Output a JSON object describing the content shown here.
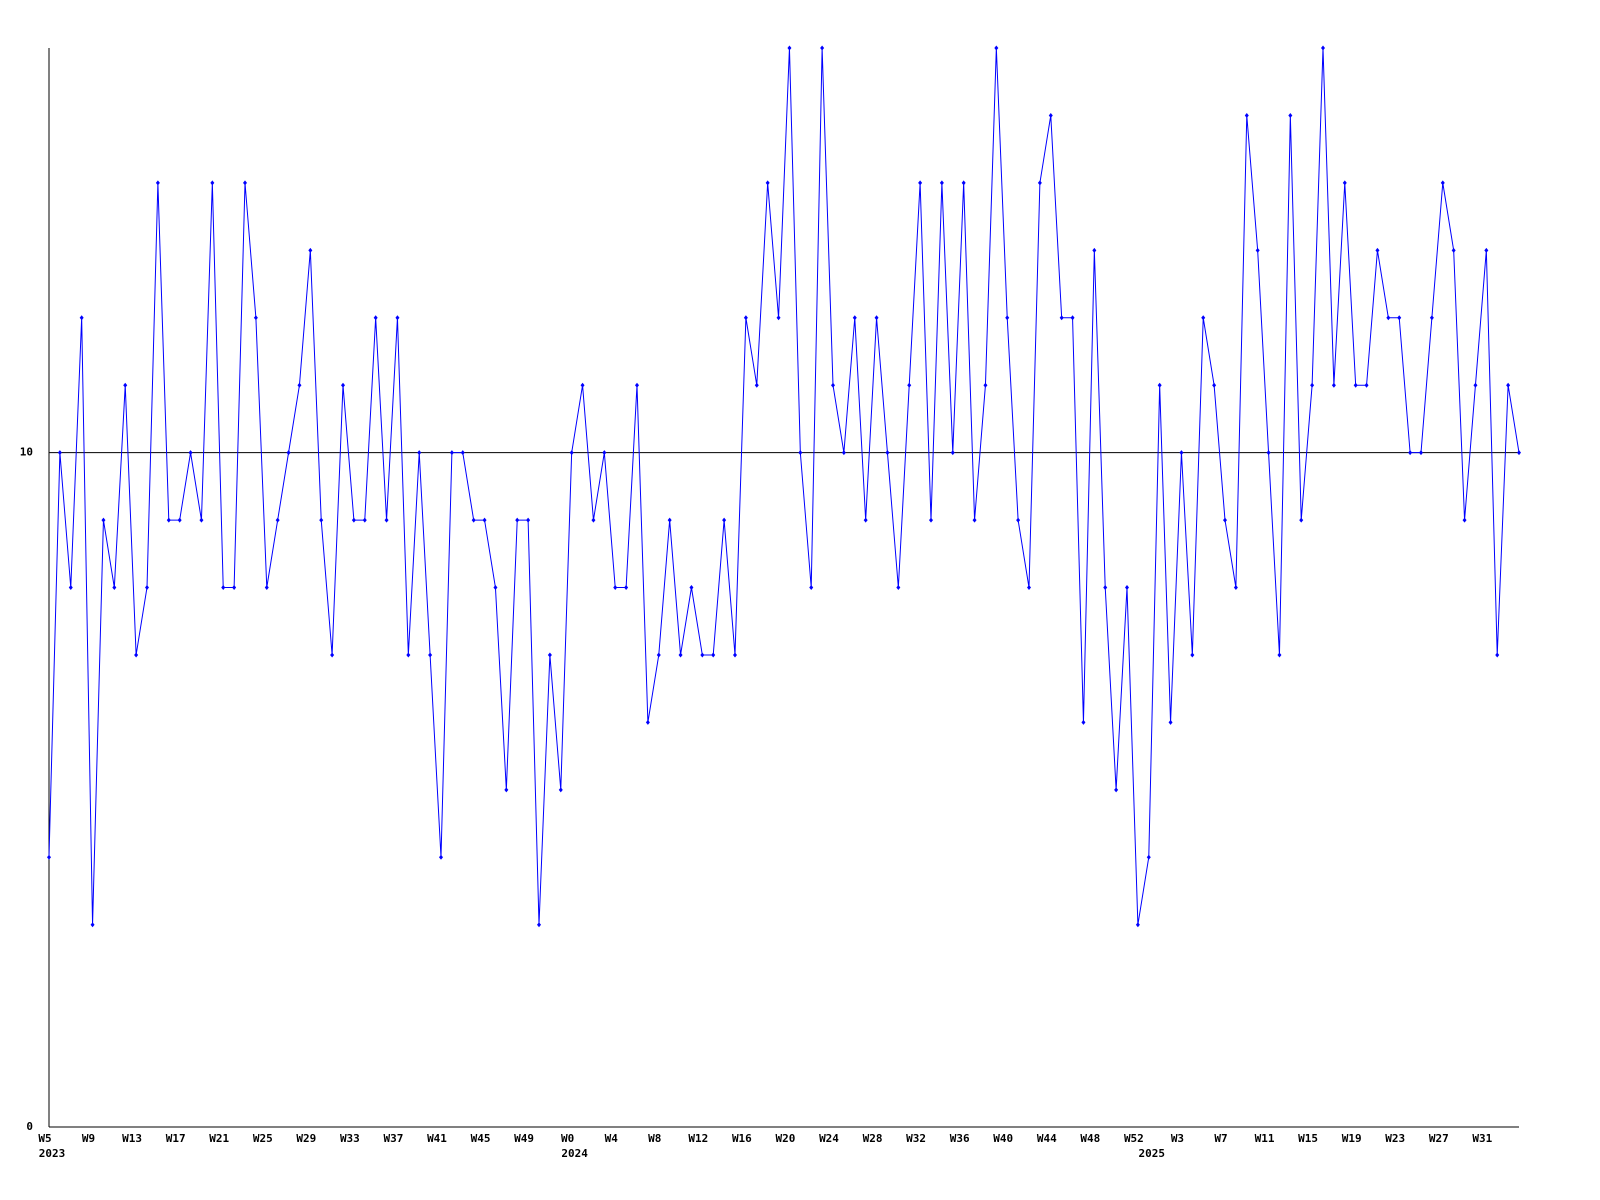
{
  "chart_data": {
    "type": "line",
    "categories": [
      "W5",
      null,
      null,
      null,
      "W9",
      null,
      null,
      null,
      "W13",
      null,
      null,
      null,
      "W17",
      null,
      null,
      null,
      "W21",
      null,
      null,
      null,
      "W25",
      null,
      null,
      null,
      "W29",
      null,
      null,
      null,
      "W33",
      null,
      null,
      null,
      "W37",
      null,
      null,
      null,
      "W41",
      null,
      null,
      null,
      "W45",
      null,
      null,
      null,
      "W49",
      null,
      null,
      null,
      "W0",
      null,
      null,
      null,
      "W4",
      null,
      null,
      null,
      "W8",
      null,
      null,
      null,
      "W12",
      null,
      null,
      null,
      "W16",
      null,
      null,
      null,
      "W20",
      null,
      null,
      null,
      "W24",
      null,
      null,
      null,
      "W28",
      null,
      null,
      null,
      "W32",
      null,
      null,
      null,
      "W36",
      null,
      null,
      null,
      "W40",
      null,
      null,
      null,
      "W44",
      null,
      null,
      null,
      "W48",
      null,
      null,
      null,
      "W52",
      null,
      null,
      null,
      "W3",
      null,
      null,
      null,
      "W7",
      null,
      null,
      null,
      "W11",
      null,
      null,
      null,
      "W15",
      null,
      null,
      null,
      "W19",
      null,
      null,
      null,
      "W23",
      null,
      null,
      null,
      "W27",
      null,
      null,
      null,
      "W31",
      null,
      null,
      null
    ],
    "year_labels": [
      "2023",
      null,
      null,
      null,
      null,
      null,
      null,
      null,
      null,
      null,
      null,
      null,
      null,
      null,
      null,
      null,
      null,
      null,
      null,
      null,
      null,
      null,
      null,
      null,
      null,
      null,
      null,
      null,
      null,
      null,
      null,
      null,
      null,
      null,
      null,
      null,
      null,
      null,
      null,
      null,
      null,
      null,
      null,
      null,
      null,
      null,
      null,
      null,
      "2024",
      null,
      null,
      null,
      null,
      null,
      null,
      null,
      null,
      null,
      null,
      null,
      null,
      null,
      null,
      null,
      null,
      null,
      null,
      null,
      null,
      null,
      null,
      null,
      null,
      null,
      null,
      null,
      null,
      null,
      null,
      null,
      null,
      null,
      null,
      null,
      null,
      null,
      null,
      null,
      null,
      null,
      null,
      null,
      null,
      null,
      null,
      null,
      null,
      null,
      null,
      null,
      null,
      "2025",
      null,
      null,
      null,
      null,
      null,
      null,
      null,
      null,
      null,
      null,
      null,
      null,
      null,
      null,
      null,
      null,
      null,
      null,
      null,
      null,
      null,
      null,
      null,
      null,
      null,
      null,
      null,
      null,
      null,
      null,
      null,
      null,
      null,
      null
    ],
    "series": [
      {
        "color": "#0000ff",
        "values": [
          4,
          10,
          8,
          12,
          3,
          9,
          8,
          11,
          7,
          8,
          14,
          9,
          9,
          10,
          9,
          14,
          8,
          8,
          14,
          12,
          8,
          9,
          10,
          11,
          13,
          9,
          7,
          11,
          9,
          9,
          12,
          9,
          12,
          7,
          10,
          7,
          4,
          10,
          10,
          9,
          9,
          8,
          5,
          9,
          9,
          3,
          7,
          5,
          10,
          11,
          9,
          10,
          8,
          8,
          11,
          6,
          7,
          9,
          7,
          8,
          7,
          7,
          9,
          7,
          12,
          11,
          14,
          12,
          16,
          10,
          8,
          16,
          11,
          10,
          12,
          9,
          12,
          10,
          8,
          11,
          14,
          9,
          14,
          10,
          14,
          9,
          11,
          16,
          12,
          9,
          8,
          14,
          15,
          12,
          12,
          6,
          13,
          8,
          5,
          8,
          3,
          4,
          11,
          6,
          10,
          7,
          12,
          11,
          9,
          8,
          15,
          13,
          10,
          7,
          15,
          9,
          11,
          16,
          11,
          14,
          11,
          11,
          13,
          12,
          12,
          10,
          10,
          12,
          14,
          13,
          9,
          11,
          13,
          7,
          11,
          10
        ]
      }
    ],
    "ylim": [
      0,
      16
    ],
    "yticks": [
      0,
      10
    ],
    "grid": true
  }
}
